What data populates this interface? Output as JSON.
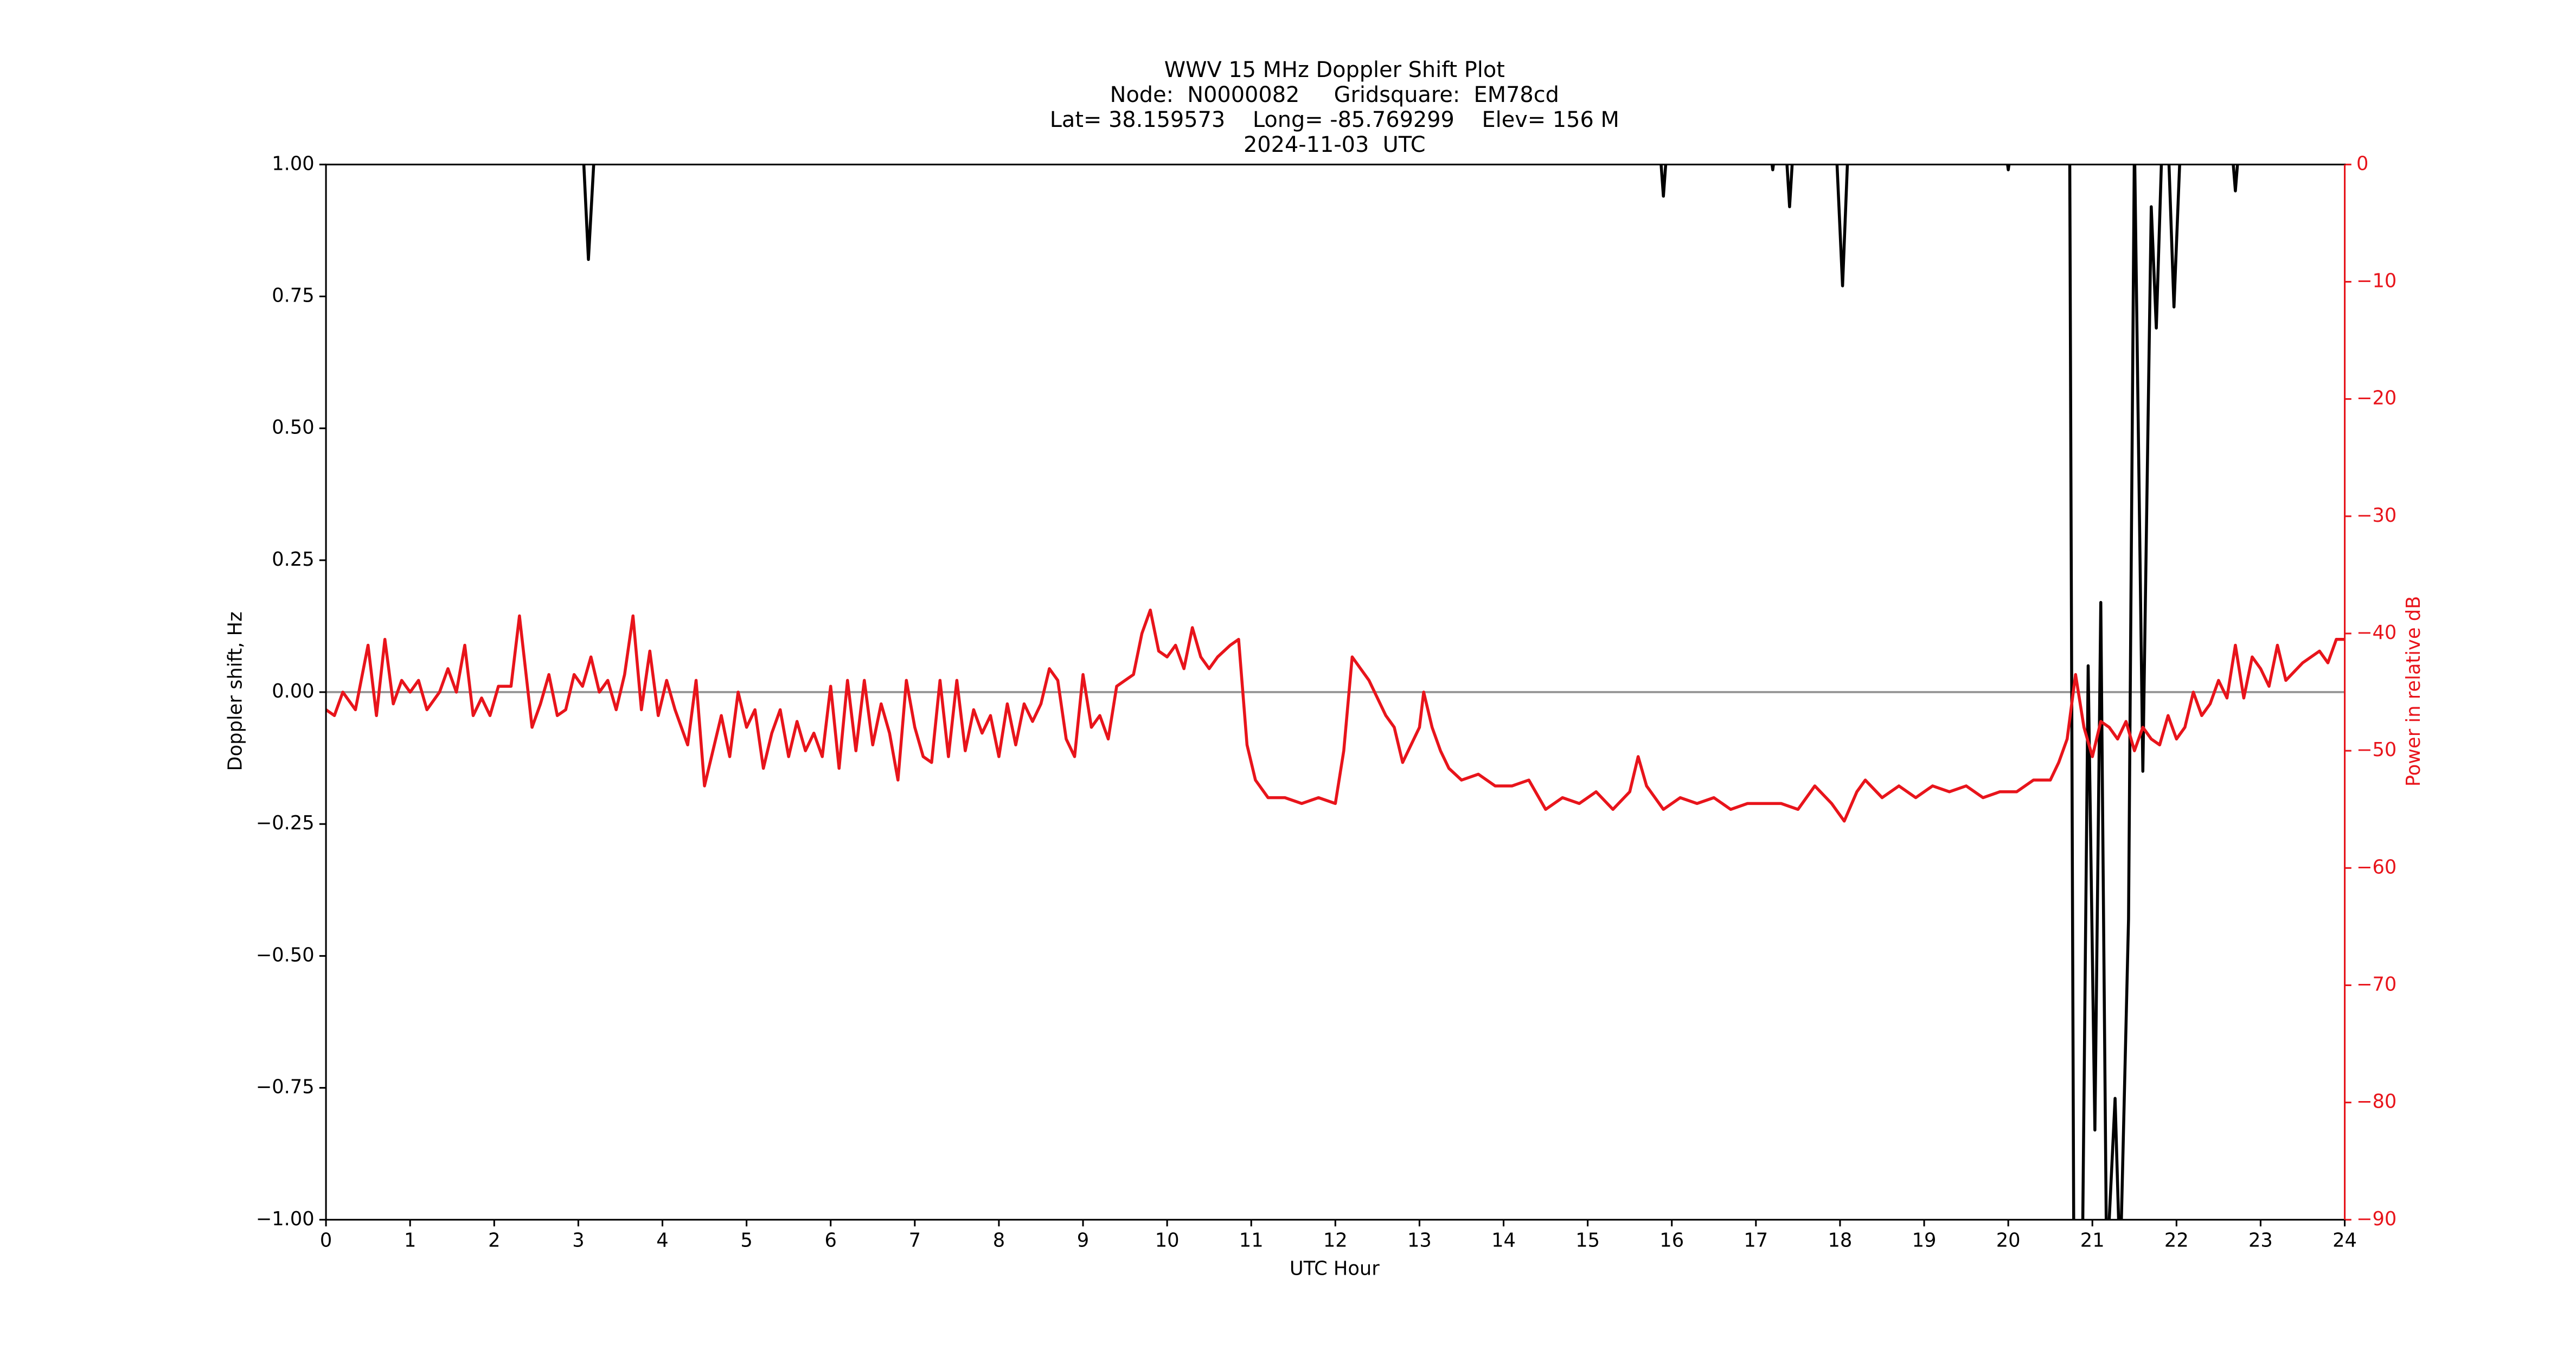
{
  "chart_data": {
    "type": "line",
    "title": [
      "WWV 15 MHz Doppler Shift Plot",
      "Node:  N0000082     Gridsquare:  EM78cd",
      "Lat= 38.159573    Long= -85.769299    Elev= 156 M",
      "2024-11-03  UTC"
    ],
    "xlabel": "UTC Hour",
    "ylabel": "Doppler shift, Hz",
    "y2label": "Power in relative dB",
    "y2color": "#e8141b",
    "xlim": [
      0,
      24
    ],
    "xticks": [
      0,
      1,
      2,
      3,
      4,
      5,
      6,
      7,
      8,
      9,
      10,
      11,
      12,
      13,
      14,
      15,
      16,
      17,
      18,
      19,
      20,
      21,
      22,
      23,
      24
    ],
    "ylim": [
      -1,
      1
    ],
    "yticks": [
      {
        "value": -1,
        "label": "−1.00"
      },
      {
        "value": -0.75,
        "label": "−0.75"
      },
      {
        "value": -0.5,
        "label": "−0.50"
      },
      {
        "value": -0.25,
        "label": "−0.25"
      },
      {
        "value": 0,
        "label": "0.00"
      },
      {
        "value": 0.25,
        "label": "0.25"
      },
      {
        "value": 0.5,
        "label": "0.50"
      },
      {
        "value": 0.75,
        "label": "0.75"
      },
      {
        "value": 1,
        "label": "1.00"
      }
    ],
    "y2lim": [
      -90,
      0
    ],
    "y2ticks": [
      0,
      {
        "value": -10,
        "label": "−10"
      },
      {
        "value": -20,
        "label": "−20"
      },
      {
        "value": -30,
        "label": "−30"
      },
      {
        "value": -40,
        "label": "−40"
      },
      {
        "value": -50,
        "label": "−50"
      },
      {
        "value": -60,
        "label": "−60"
      },
      {
        "value": -70,
        "label": "−70"
      },
      {
        "value": -80,
        "label": "−80"
      },
      {
        "value": -90,
        "label": "−90"
      }
    ],
    "hline": 0,
    "hline_color": "#999999",
    "series": [
      {
        "color": "#000000",
        "x": [
          0,
          3.05,
          3.12,
          3.2,
          15.85,
          15.9,
          15.95,
          17.15,
          17.2,
          17.25,
          17.35,
          17.4,
          17.45,
          17.95,
          18.03,
          18.1,
          19.95,
          20,
          20.05,
          20.73,
          20.78,
          20.88,
          20.95,
          21.03,
          21.1,
          21.17,
          21.27,
          21.33,
          21.43,
          21.5,
          21.6,
          21.7,
          21.76,
          21.83,
          21.9,
          21.97,
          22.05,
          22.65,
          22.7,
          22.75,
          24
        ],
        "values": [
          1.05,
          1.05,
          0.82,
          1.05,
          1.05,
          0.94,
          1.05,
          1.05,
          0.99,
          1.05,
          1.05,
          0.92,
          1.05,
          1.05,
          0.77,
          1.05,
          1.05,
          0.99,
          1.05,
          1.05,
          -1.1,
          -1.1,
          0.05,
          -0.83,
          0.17,
          -1.1,
          -0.77,
          -1.1,
          -0.43,
          1.05,
          -0.15,
          0.92,
          0.69,
          1.05,
          1.05,
          0.73,
          1.05,
          1.05,
          0.95,
          1.05,
          1.05
        ]
      },
      {
        "color": "#e8141b",
        "axis": "y2",
        "x": [
          0,
          0.1,
          0.2,
          0.35,
          0.5,
          0.6,
          0.7,
          0.8,
          0.9,
          1.0,
          1.1,
          1.2,
          1.35,
          1.45,
          1.55,
          1.65,
          1.75,
          1.85,
          1.95,
          2.05,
          2.2,
          2.3,
          2.45,
          2.55,
          2.65,
          2.75,
          2.85,
          2.95,
          3.05,
          3.15,
          3.25,
          3.35,
          3.45,
          3.55,
          3.65,
          3.75,
          3.85,
          3.95,
          4.05,
          4.15,
          4.3,
          4.4,
          4.5,
          4.6,
          4.7,
          4.8,
          4.9,
          5.0,
          5.1,
          5.2,
          5.3,
          5.4,
          5.5,
          5.6,
          5.7,
          5.8,
          5.9,
          6.0,
          6.1,
          6.2,
          6.3,
          6.4,
          6.5,
          6.6,
          6.7,
          6.8,
          6.9,
          7.0,
          7.1,
          7.2,
          7.3,
          7.4,
          7.5,
          7.6,
          7.7,
          7.8,
          7.9,
          8.0,
          8.1,
          8.2,
          8.3,
          8.4,
          8.5,
          8.6,
          8.7,
          8.8,
          8.9,
          9.0,
          9.1,
          9.2,
          9.3,
          9.4,
          9.5,
          9.6,
          9.7,
          9.8,
          9.9,
          10.0,
          10.1,
          10.2,
          10.3,
          10.4,
          10.5,
          10.6,
          10.75,
          10.85,
          10.95,
          11.05,
          11.2,
          11.4,
          11.6,
          11.8,
          12.0,
          12.1,
          12.2,
          12.3,
          12.4,
          12.5,
          12.6,
          12.7,
          12.8,
          12.9,
          13.0,
          13.05,
          13.15,
          13.25,
          13.35,
          13.5,
          13.7,
          13.9,
          14.1,
          14.3,
          14.5,
          14.7,
          14.9,
          15.1,
          15.3,
          15.5,
          15.6,
          15.7,
          15.9,
          16.1,
          16.3,
          16.5,
          16.7,
          16.9,
          17.1,
          17.3,
          17.5,
          17.7,
          17.9,
          18.05,
          18.2,
          18.3,
          18.5,
          18.7,
          18.9,
          19.1,
          19.3,
          19.5,
          19.7,
          19.9,
          20.1,
          20.3,
          20.5,
          20.6,
          20.7,
          20.8,
          20.9,
          21.0,
          21.1,
          21.2,
          21.3,
          21.4,
          21.5,
          21.6,
          21.7,
          21.8,
          21.9,
          22.0,
          22.1,
          22.2,
          22.3,
          22.4,
          22.5,
          22.6,
          22.7,
          22.8,
          22.9,
          23.0,
          23.1,
          23.2,
          23.3,
          23.5,
          23.7,
          23.8,
          23.9,
          24.0
        ],
        "values": [
          -46.5,
          -47,
          -45,
          -46.5,
          -41,
          -47,
          -40.5,
          -46,
          -44,
          -45,
          -44,
          -46.5,
          -45,
          -43,
          -45,
          -41,
          -47,
          -45.5,
          -47,
          -44.5,
          -44.5,
          -38.5,
          -48,
          -46,
          -43.5,
          -47,
          -46.5,
          -43.5,
          -44.5,
          -42,
          -45,
          -44,
          -46.5,
          -43.5,
          -38.5,
          -46.5,
          -41.5,
          -47,
          -44,
          -46.5,
          -49.5,
          -44,
          -53,
          -50,
          -47,
          -50.5,
          -45,
          -48,
          -46.5,
          -51.5,
          -48.5,
          -46.5,
          -50.5,
          -47.5,
          -50,
          -48.5,
          -50.5,
          -44.5,
          -51.5,
          -44,
          -50,
          -44,
          -49.5,
          -46,
          -48.5,
          -52.5,
          -44,
          -48,
          -50.5,
          -51,
          -44,
          -50.5,
          -44,
          -50,
          -46.5,
          -48.5,
          -47,
          -50.5,
          -46,
          -49.5,
          -46,
          -47.5,
          -46,
          -43,
          -44,
          -49,
          -50.5,
          -43.5,
          -48,
          -47,
          -49,
          -44.5,
          -44,
          -43.5,
          -40,
          -38,
          -41.5,
          -42,
          -41,
          -43,
          -39.5,
          -42,
          -43,
          -42,
          -41,
          -40.5,
          -49.5,
          -52.5,
          -54,
          -54,
          -54.5,
          -54,
          -54.5,
          -50,
          -42,
          -43,
          -44,
          -45.5,
          -47,
          -48,
          -51,
          -49.5,
          -48,
          -45,
          -48,
          -50,
          -51.5,
          -52.5,
          -52,
          -53,
          -53,
          -52.5,
          -55,
          -54,
          -54.5,
          -53.5,
          -55,
          -53.5,
          -50.5,
          -53,
          -55,
          -54,
          -54.5,
          -54,
          -55,
          -54.5,
          -54.5,
          -54.5,
          -55,
          -53,
          -54.5,
          -56,
          -53.5,
          -52.5,
          -54,
          -53,
          -54,
          -53,
          -53.5,
          -53,
          -54,
          -53.5,
          -53.5,
          -52.5,
          -52.5,
          -51,
          -49,
          -43.5,
          -48,
          -50.5,
          -47.5,
          -48,
          -49,
          -47.5,
          -50,
          -48,
          -49,
          -49.5,
          -47,
          -49,
          -48,
          -45,
          -47,
          -46,
          -44,
          -45.5,
          -41,
          -45.5,
          -42,
          -43,
          -44.5,
          -41,
          -44,
          -42.5,
          -41.5,
          -42.5,
          -40.5,
          -40.5
        ]
      }
    ]
  }
}
